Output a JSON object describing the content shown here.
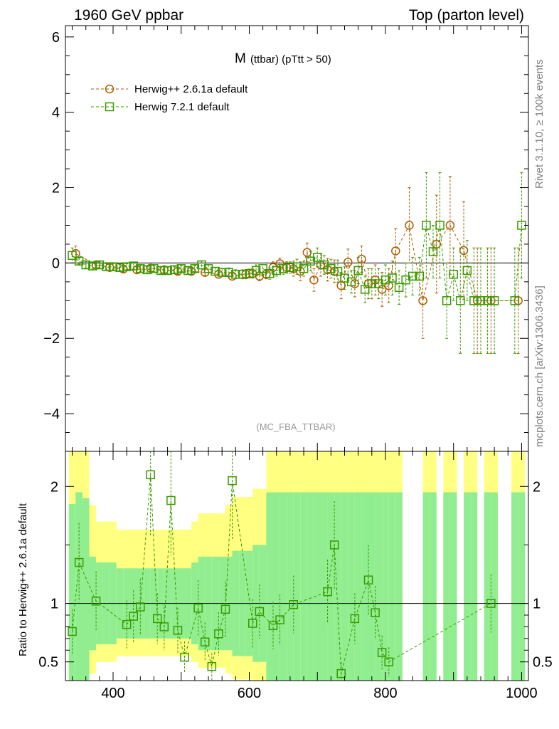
{
  "header": {
    "left": "1960 GeV ppbar",
    "right": "Top (parton level)"
  },
  "side": {
    "rivet": "Rivet 3.1.10, ≥ 100k events",
    "mcplots": "mcplots.cern.ch [arXiv:1306.3436]"
  },
  "colors": {
    "herwigpp": "#b35a00",
    "herwig7": "#3a9a00",
    "band_yellow": "#ffff80",
    "band_green": "#90ee90"
  },
  "chart_data": [
    {
      "type": "scatter",
      "panel": "main",
      "title_main": "M",
      "title_sub": "(ttbar) (pTtt > 50)",
      "watermark": "(MC_FBA_TTBAR)",
      "xlim": [
        330,
        1010
      ],
      "ylim": [
        -5,
        6.3
      ],
      "yticks": [
        -4,
        -2,
        0,
        2,
        4,
        6
      ],
      "ytick_labels": [
        "−4",
        "−2",
        "0",
        "2",
        "4",
        "6"
      ],
      "legend_position": "top-left",
      "series": [
        {
          "name": "Herwig++ 2.6.1a default",
          "marker": "circle",
          "x": [
            345,
            375,
            395,
            415,
            435,
            455,
            475,
            495,
            515,
            535,
            555,
            575,
            595,
            605,
            615,
            625,
            635,
            645,
            655,
            665,
            675,
            685,
            695,
            705,
            715,
            725,
            735,
            745,
            755,
            765,
            775,
            785,
            795,
            805,
            815,
            835,
            855,
            875,
            895,
            915,
            935,
            955,
            995
          ],
          "y": [
            0.25,
            -0.05,
            -0.12,
            -0.16,
            -0.18,
            -0.14,
            -0.18,
            -0.22,
            -0.22,
            -0.25,
            -0.3,
            -0.35,
            -0.3,
            -0.28,
            -0.35,
            -0.3,
            -0.12,
            -0.02,
            -0.12,
            -0.15,
            -0.22,
            0.28,
            -0.45,
            -0.05,
            -0.18,
            -0.22,
            -0.6,
            0.02,
            -0.55,
            0.1,
            -0.55,
            -0.45,
            -0.7,
            -0.6,
            0.32,
            1.0,
            -1.0,
            0.5,
            1.0,
            0.33,
            -1.0,
            -1.0,
            -1.0
          ],
          "yerr": [
            0.2,
            0.08,
            0.08,
            0.08,
            0.08,
            0.08,
            0.08,
            0.08,
            0.08,
            0.08,
            0.1,
            0.1,
            0.12,
            0.12,
            0.12,
            0.12,
            0.15,
            0.15,
            0.15,
            0.2,
            0.25,
            0.25,
            0.3,
            0.3,
            0.3,
            0.3,
            0.35,
            0.35,
            0.35,
            0.35,
            0.4,
            0.4,
            0.45,
            0.45,
            0.6,
            1.0,
            1.0,
            1.3,
            1.3,
            1.3,
            1.4,
            1.4,
            1.4
          ]
        },
        {
          "name": "Herwig 7.2.1 default",
          "marker": "square",
          "x": [
            340,
            350,
            360,
            370,
            380,
            390,
            400,
            410,
            420,
            430,
            440,
            450,
            460,
            470,
            480,
            490,
            500,
            510,
            520,
            530,
            540,
            550,
            560,
            570,
            580,
            590,
            600,
            610,
            620,
            630,
            640,
            650,
            660,
            670,
            680,
            690,
            700,
            710,
            720,
            730,
            740,
            750,
            760,
            770,
            780,
            790,
            800,
            810,
            820,
            830,
            840,
            850,
            860,
            870,
            880,
            890,
            900,
            910,
            920,
            930,
            940,
            950,
            960,
            990,
            1000
          ],
          "y": [
            0.2,
            0.05,
            -0.05,
            -0.08,
            -0.05,
            -0.1,
            -0.1,
            -0.12,
            -0.1,
            -0.08,
            -0.15,
            -0.18,
            -0.15,
            -0.2,
            -0.2,
            -0.18,
            -0.15,
            -0.2,
            -0.15,
            -0.05,
            -0.15,
            -0.22,
            -0.25,
            -0.25,
            -0.3,
            -0.3,
            -0.28,
            -0.2,
            -0.15,
            -0.28,
            -0.2,
            -0.15,
            -0.12,
            -0.1,
            -0.15,
            0.05,
            0.15,
            -0.05,
            -0.15,
            -0.22,
            -0.4,
            -0.5,
            -0.2,
            -0.7,
            -0.55,
            -0.55,
            -0.45,
            -0.4,
            -0.65,
            -0.45,
            -0.35,
            -0.35,
            1.0,
            0.3,
            1.0,
            -1.0,
            -0.3,
            -1.0,
            -0.2,
            -1.0,
            -1.0,
            -1.0,
            -1.0,
            -1.0,
            1.0
          ],
          "yerr": [
            0.2,
            0.08,
            0.08,
            0.08,
            0.08,
            0.08,
            0.08,
            0.08,
            0.08,
            0.08,
            0.08,
            0.08,
            0.08,
            0.08,
            0.08,
            0.08,
            0.08,
            0.08,
            0.08,
            0.1,
            0.1,
            0.1,
            0.1,
            0.12,
            0.12,
            0.12,
            0.12,
            0.15,
            0.15,
            0.15,
            0.15,
            0.15,
            0.15,
            0.2,
            0.2,
            0.25,
            0.25,
            0.25,
            0.25,
            0.3,
            0.3,
            0.3,
            0.35,
            0.35,
            0.4,
            0.4,
            0.4,
            0.45,
            0.45,
            0.45,
            0.5,
            0.5,
            1.4,
            0.7,
            1.4,
            1.0,
            0.7,
            1.4,
            0.8,
            1.4,
            1.4,
            1.4,
            1.4,
            1.4,
            1.4
          ]
        }
      ]
    },
    {
      "type": "scatter",
      "panel": "ratio",
      "ylabel": "Ratio to Herwig++ 2.6.1a default",
      "xlim": [
        330,
        1010
      ],
      "ylim": [
        0.34,
        2.3
      ],
      "xticks": [
        400,
        600,
        800,
        1000
      ],
      "xtick_labels": [
        "400",
        "600",
        "800",
        "1000"
      ],
      "yticks": [
        0.5,
        1,
        2
      ],
      "ytick_labels": [
        "0.5",
        "1",
        "2"
      ],
      "bands": {
        "x": [
          340,
          350,
          360,
          370,
          380,
          390,
          400,
          410,
          420,
          430,
          440,
          450,
          460,
          470,
          480,
          490,
          500,
          510,
          520,
          530,
          540,
          550,
          560,
          570,
          580,
          590,
          600,
          610,
          620,
          630,
          640,
          650,
          660,
          670,
          680,
          690,
          700,
          710,
          720,
          730,
          740,
          750,
          760,
          770,
          780,
          790,
          800,
          810,
          820,
          860,
          870,
          890,
          900,
          920,
          930,
          950,
          960,
          990,
          1000
        ],
        "green_half": [
          0.85,
          0.95,
          0.9,
          0.4,
          0.35,
          0.35,
          0.35,
          0.3,
          0.3,
          0.3,
          0.3,
          0.3,
          0.3,
          0.3,
          0.3,
          0.3,
          0.3,
          0.3,
          0.35,
          0.4,
          0.4,
          0.4,
          0.4,
          0.4,
          0.45,
          0.45,
          0.45,
          0.5,
          0.5,
          0.95,
          0.95,
          0.95,
          0.95,
          0.95,
          0.95,
          0.95,
          0.95,
          0.95,
          0.95,
          0.95,
          0.95,
          0.95,
          0.95,
          0.95,
          0.95,
          0.95,
          0.95,
          0.95,
          0.95,
          0.95,
          0.95,
          0.95,
          0.95,
          0.95,
          0.95,
          0.95,
          0.95,
          0.95,
          0.95
        ],
        "yellow_half": [
          0.95,
          0.95,
          0.95,
          0.6,
          0.5,
          0.5,
          0.5,
          0.45,
          0.45,
          0.45,
          0.45,
          0.45,
          0.45,
          0.45,
          0.45,
          0.45,
          0.45,
          0.45,
          0.5,
          0.55,
          0.55,
          0.55,
          0.55,
          0.6,
          0.65,
          0.65,
          0.65,
          0.7,
          0.7,
          0.95,
          0.95,
          0.95,
          0.95,
          0.95,
          0.95,
          0.95,
          0.95,
          0.95,
          0.95,
          0.95,
          0.95,
          0.95,
          0.95,
          0.95,
          0.95,
          0.95,
          0.95,
          0.95,
          0.95,
          0.95,
          0.95,
          0.95,
          0.95,
          0.95,
          0.95,
          0.95,
          0.95,
          0.95,
          0.95
        ]
      },
      "series": [
        {
          "name": "Herwig 7.2.1 default",
          "marker": "square",
          "x": [
            340,
            350,
            375,
            420,
            430,
            440,
            455,
            465,
            475,
            485,
            495,
            505,
            525,
            535,
            545,
            555,
            565,
            575,
            605,
            615,
            635,
            645,
            665,
            715,
            725,
            735,
            755,
            775,
            785,
            795,
            805,
            955
          ],
          "y": [
            0.76,
            1.35,
            1.02,
            0.82,
            0.89,
            0.97,
            2.1,
            0.87,
            0.8,
            1.88,
            0.77,
            0.54,
            0.96,
            0.67,
            0.46,
            0.74,
            0.95,
            2.05,
            0.83,
            0.93,
            0.81,
            0.86,
            0.99,
            1.1,
            1.5,
            0.4,
            0.87,
            1.2,
            0.92,
            0.58,
            0.5,
            1.0
          ]
        }
      ]
    }
  ]
}
